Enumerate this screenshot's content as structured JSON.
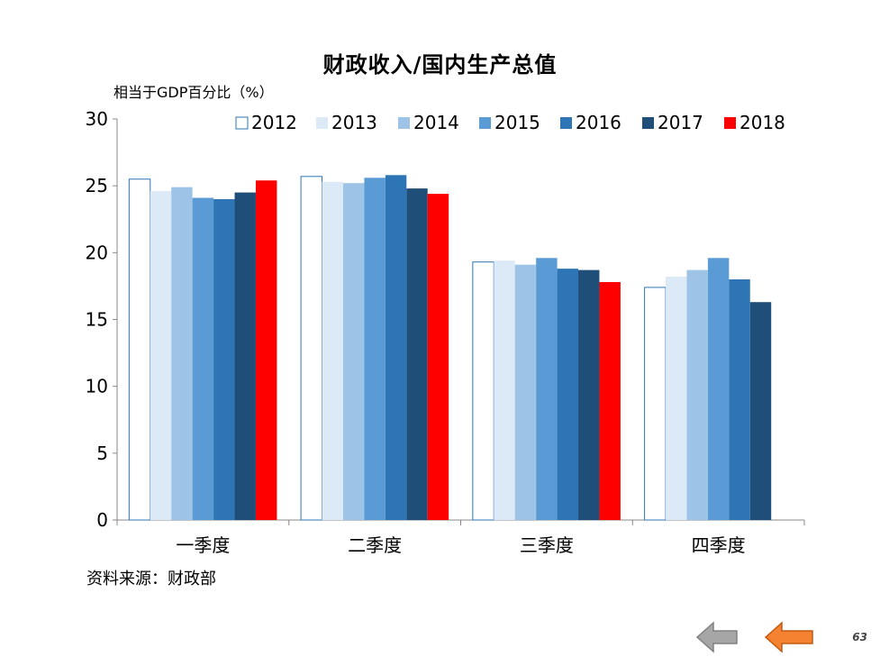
{
  "chart_data": {
    "type": "bar",
    "title": "财政收入/国内生产总值",
    "ylabel": "相当于GDP百分比（%）",
    "xlabel": "",
    "ylim": [
      0,
      30
    ],
    "yticks": [
      0,
      5,
      10,
      15,
      20,
      25,
      30
    ],
    "categories": [
      "一季度",
      "二季度",
      "三季度",
      "四季度"
    ],
    "legend_position": "top",
    "grid": false,
    "series": [
      {
        "name": "2012",
        "color": "#ffffff",
        "stroke": "#2e75b6",
        "values": [
          25.5,
          25.7,
          19.3,
          17.4
        ]
      },
      {
        "name": "2013",
        "color": "#dce9f6",
        "values": [
          24.6,
          25.3,
          19.4,
          18.2
        ]
      },
      {
        "name": "2014",
        "color": "#9dc3e6",
        "values": [
          24.9,
          25.2,
          19.1,
          18.7
        ]
      },
      {
        "name": "2015",
        "color": "#5b9bd5",
        "values": [
          24.1,
          25.6,
          19.6,
          19.6
        ]
      },
      {
        "name": "2016",
        "color": "#2e75b6",
        "values": [
          24.0,
          25.8,
          18.8,
          18.0
        ]
      },
      {
        "name": "2017",
        "color": "#1f4e79",
        "values": [
          24.5,
          24.8,
          18.7,
          16.3
        ]
      },
      {
        "name": "2018",
        "color": "#ff0000",
        "values": [
          25.4,
          24.4,
          17.8,
          null
        ]
      }
    ]
  },
  "source": "资料来源：财政部",
  "page_number": "63",
  "nav": {
    "back_color": "#a6a6a6",
    "forward_color": "#f58231"
  }
}
